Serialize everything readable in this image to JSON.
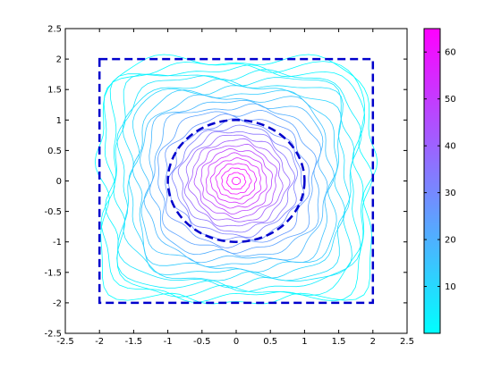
{
  "chart_data": {
    "type": "contour",
    "title": "",
    "xlabel": "",
    "ylabel": "",
    "xlim": [
      -2.5,
      2.5
    ],
    "ylim": [
      -2.5,
      2.5
    ],
    "x_ticks": [
      "-2.5",
      "-2",
      "-1.5",
      "-1",
      "-0.5",
      "0",
      "0.5",
      "1",
      "1.5",
      "2",
      "2.5"
    ],
    "y_ticks": [
      "2.5",
      "2",
      "1.5",
      "1",
      "0.5",
      "0",
      "-0.5",
      "-1",
      "-1.5",
      "-2",
      "-2.5"
    ],
    "grid": false,
    "colormap": {
      "low": "#00ffff",
      "high": "#ff00ff"
    },
    "colorbar": {
      "range": [
        0,
        65
      ],
      "ticks": [
        "60",
        "50",
        "40",
        "30",
        "20",
        "10"
      ],
      "tick_values": [
        60,
        50,
        40,
        30,
        20,
        10
      ]
    },
    "contour": {
      "center": [
        0,
        0
      ],
      "levels": 26,
      "outer_extent": 2.0,
      "high_region_radius": 1.0
    },
    "overlays": [
      {
        "shape": "square",
        "style": "dashed",
        "color": "#0000cc",
        "x": [
          -2,
          2
        ],
        "y": [
          -2,
          2
        ]
      },
      {
        "shape": "circle",
        "style": "dashed",
        "color": "#0000cc",
        "center": [
          0,
          0
        ],
        "radius": 1
      }
    ]
  }
}
